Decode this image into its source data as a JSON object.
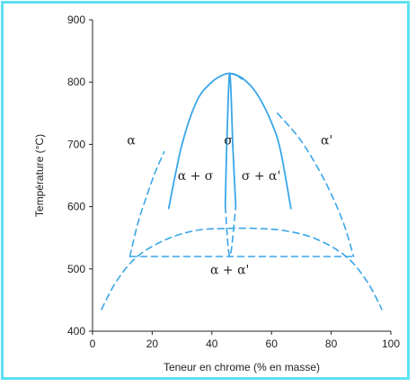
{
  "chart_data": {
    "type": "line",
    "title": "",
    "xlabel": "Teneur en chrome (% en masse)",
    "ylabel": "Température (°C)",
    "xlim": [
      0,
      100
    ],
    "ylim": [
      400,
      900
    ],
    "xticks": [
      "0",
      "20",
      "40",
      "60",
      "80",
      "100"
    ],
    "yticks": [
      "400",
      "500",
      "600",
      "700",
      "800",
      "900"
    ],
    "grid": false,
    "line_color": "#3aa6e8",
    "frame_color": "#5ee0f2",
    "series": [
      {
        "style": "solid",
        "x": [
          25.5,
          30,
          35,
          40,
          44,
          46,
          48,
          50
        ],
        "y": [
          597,
          700,
          770,
          800,
          812,
          814,
          812,
          805
        ]
      },
      {
        "style": "solid",
        "x": [
          46,
          50,
          55,
          60,
          63,
          66.5
        ],
        "y": [
          814,
          807,
          782,
          735,
          690,
          597
        ]
      },
      {
        "style": "solid",
        "x": [
          44.5,
          45,
          46,
          47
        ],
        "y": [
          600,
          700,
          814,
          700
        ]
      },
      {
        "style": "solid",
        "x": [
          47,
          48
        ],
        "y": [
          700,
          600
        ]
      },
      {
        "style": "dashed",
        "x": [
          44.5,
          46,
          48
        ],
        "y": [
          600,
          520,
          600
        ]
      },
      {
        "style": "dashed",
        "x": [
          3,
          8,
          15,
          25,
          35,
          45,
          55,
          65,
          75,
          85,
          92,
          97
        ],
        "y": [
          435,
          480,
          520,
          548,
          562,
          565,
          565,
          561,
          548,
          520,
          480,
          435
        ]
      },
      {
        "style": "dashed",
        "x": [
          12.5,
          87.5
        ],
        "y": [
          520,
          520
        ]
      },
      {
        "style": "dashed",
        "x": [
          12.5,
          15,
          18,
          21,
          24
        ],
        "y": [
          520,
          570,
          615,
          655,
          688
        ]
      },
      {
        "style": "dashed",
        "x": [
          62,
          70,
          78,
          84,
          87.5
        ],
        "y": [
          750,
          705,
          640,
          575,
          520
        ]
      }
    ],
    "annotations": [
      {
        "text": "α",
        "x": 13,
        "y": 700
      },
      {
        "text": "σ",
        "x": 45.5,
        "y": 700
      },
      {
        "text": "α'",
        "x": 78.5,
        "y": 700
      },
      {
        "text": "α + σ",
        "x": 34.5,
        "y": 643
      },
      {
        "text": "σ + α'",
        "x": 56.5,
        "y": 643
      },
      {
        "text": "α + α'",
        "x": 46,
        "y": 492
      }
    ]
  }
}
